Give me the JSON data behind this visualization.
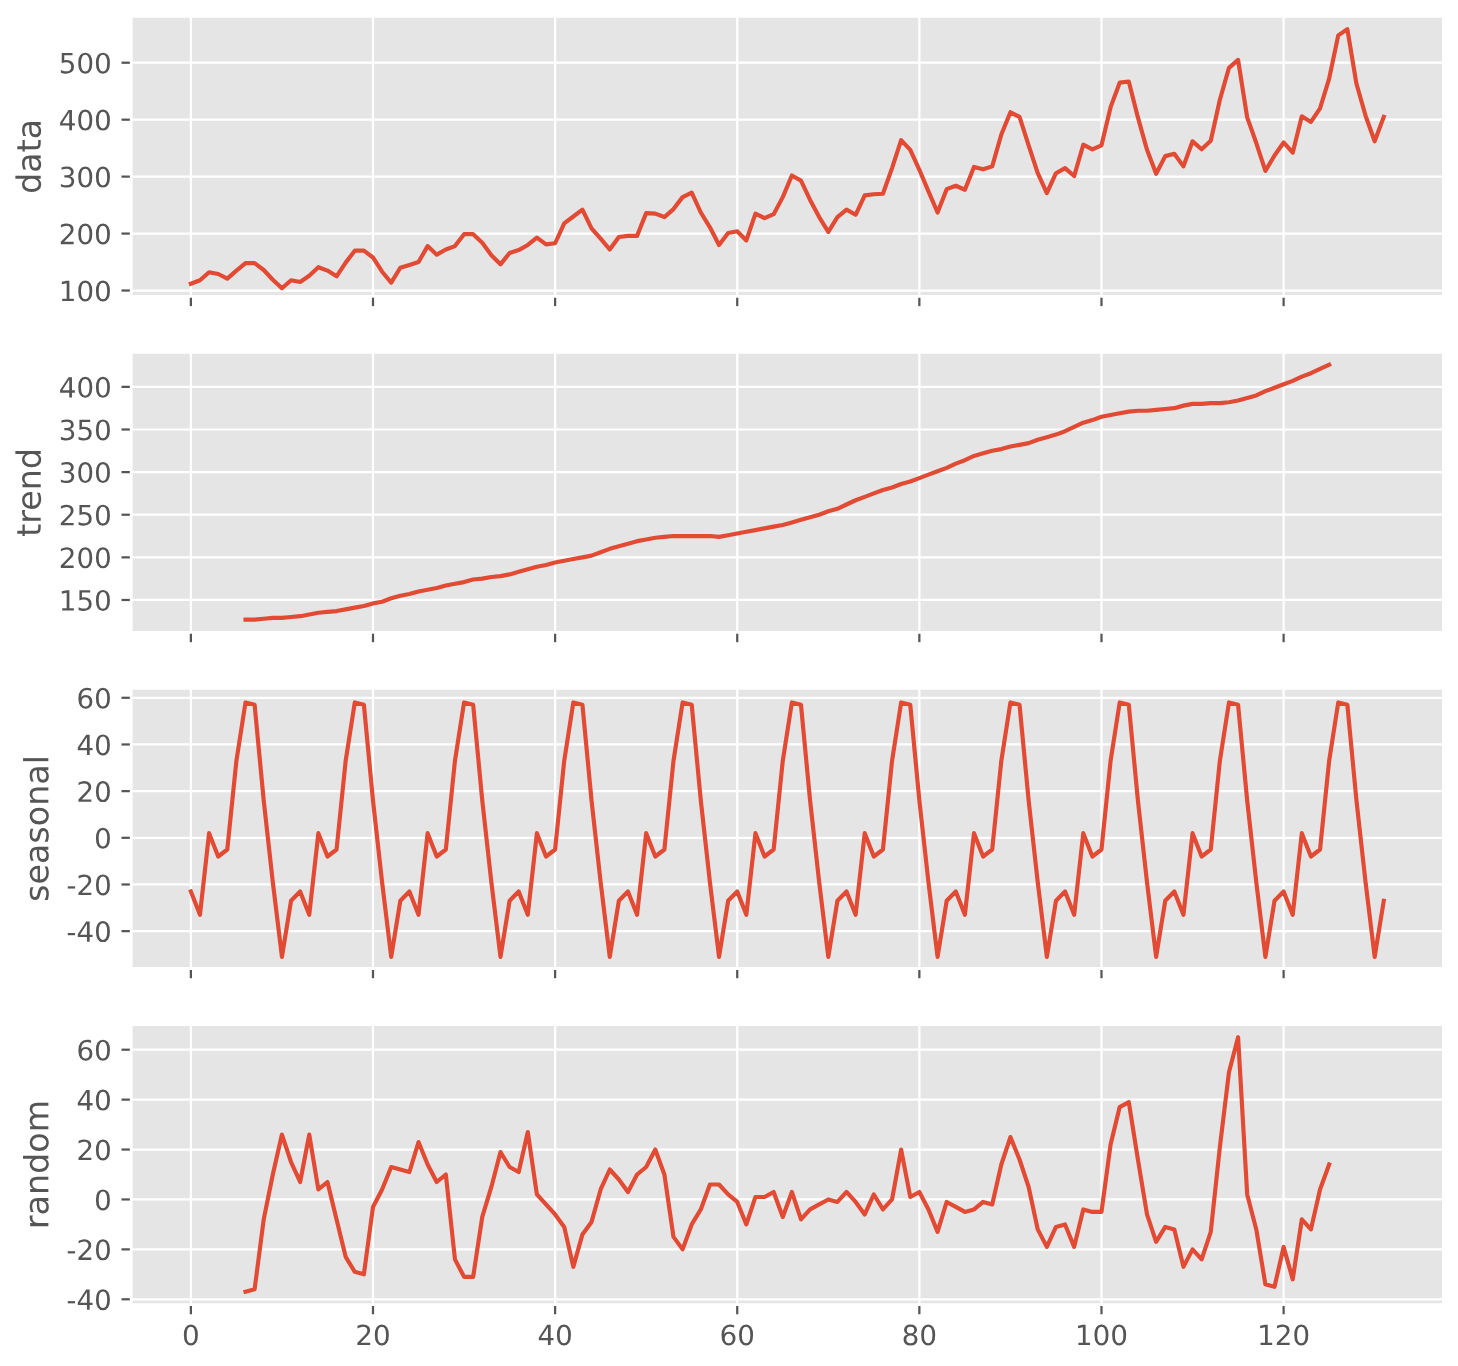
{
  "chart_data": [
    {
      "type": "line",
      "ylabel": "data",
      "color": "#e24a33",
      "grid": true,
      "tick_labels": "y",
      "xlim": [
        -6.55,
        137.55
      ],
      "ylim": [
        89.65,
        581.35
      ],
      "xticks": [
        0,
        20,
        40,
        60,
        80,
        100,
        120
      ],
      "yticks": [
        100,
        200,
        300,
        400,
        500
      ],
      "x": [
        0,
        1,
        2,
        3,
        4,
        5,
        6,
        7,
        8,
        9,
        10,
        11,
        12,
        13,
        14,
        15,
        16,
        17,
        18,
        19,
        20,
        21,
        22,
        23,
        24,
        25,
        26,
        27,
        28,
        29,
        30,
        31,
        32,
        33,
        34,
        35,
        36,
        37,
        38,
        39,
        40,
        41,
        42,
        43,
        44,
        45,
        46,
        47,
        48,
        49,
        50,
        51,
        52,
        53,
        54,
        55,
        56,
        57,
        58,
        59,
        60,
        61,
        62,
        63,
        64,
        65,
        66,
        67,
        68,
        69,
        70,
        71,
        72,
        73,
        74,
        75,
        76,
        77,
        78,
        79,
        80,
        81,
        82,
        83,
        84,
        85,
        86,
        87,
        88,
        89,
        90,
        91,
        92,
        93,
        94,
        95,
        96,
        97,
        98,
        99,
        100,
        101,
        102,
        103,
        104,
        105,
        106,
        107,
        108,
        109,
        110,
        111,
        112,
        113,
        114,
        115,
        116,
        117,
        118,
        119,
        120,
        121,
        122,
        123,
        124,
        125,
        126,
        127,
        128,
        129,
        130,
        131
      ],
      "values": [
        112,
        118,
        132,
        129,
        121,
        135,
        148,
        148,
        136,
        119,
        104,
        118,
        115,
        126,
        141,
        135,
        125,
        149,
        170,
        170,
        158,
        133,
        114,
        140,
        145,
        150,
        178,
        163,
        172,
        178,
        199,
        199,
        184,
        162,
        146,
        166,
        171,
        180,
        193,
        181,
        183,
        218,
        230,
        242,
        209,
        191,
        172,
        194,
        196,
        196,
        236,
        235,
        229,
        243,
        264,
        272,
        237,
        211,
        180,
        201,
        204,
        188,
        235,
        227,
        234,
        264,
        302,
        293,
        259,
        229,
        203,
        229,
        242,
        233,
        267,
        269,
        270,
        315,
        364,
        347,
        312,
        274,
        237,
        278,
        284,
        277,
        317,
        313,
        318,
        374,
        413,
        405,
        355,
        306,
        271,
        306,
        315,
        301,
        356,
        348,
        355,
        422,
        465,
        467,
        404,
        347,
        305,
        336,
        340,
        318,
        362,
        348,
        363,
        435,
        491,
        505,
        404,
        359,
        310,
        337,
        360,
        342,
        406,
        396,
        420,
        472,
        548,
        559,
        463,
        407,
        362,
        405
      ]
    },
    {
      "type": "line",
      "ylabel": "trend",
      "color": "#e24a33",
      "grid": true,
      "tick_labels": "y",
      "xlim": [
        -6.55,
        137.55
      ],
      "ylim": [
        111.9,
        440.4
      ],
      "xticks": [
        0,
        20,
        40,
        60,
        80,
        100,
        120
      ],
      "yticks": [
        150,
        200,
        250,
        300,
        350,
        400
      ],
      "x": [
        6,
        7,
        8,
        9,
        10,
        11,
        12,
        13,
        14,
        15,
        16,
        17,
        18,
        19,
        20,
        21,
        22,
        23,
        24,
        25,
        26,
        27,
        28,
        29,
        30,
        31,
        32,
        33,
        34,
        35,
        36,
        37,
        38,
        39,
        40,
        41,
        42,
        43,
        44,
        45,
        46,
        47,
        48,
        49,
        50,
        51,
        52,
        53,
        54,
        55,
        56,
        57,
        58,
        59,
        60,
        61,
        62,
        63,
        64,
        65,
        66,
        67,
        68,
        69,
        70,
        71,
        72,
        73,
        74,
        75,
        76,
        77,
        78,
        79,
        80,
        81,
        82,
        83,
        84,
        85,
        86,
        87,
        88,
        89,
        90,
        91,
        92,
        93,
        94,
        95,
        96,
        97,
        98,
        99,
        100,
        101,
        102,
        103,
        104,
        105,
        106,
        107,
        108,
        109,
        110,
        111,
        112,
        113,
        114,
        115,
        116,
        117,
        118,
        119,
        120,
        121,
        122,
        123,
        124,
        125
      ],
      "values": [
        127,
        127,
        128,
        129,
        129,
        130,
        131,
        133,
        135,
        136,
        137,
        139,
        141,
        143,
        146,
        148,
        152,
        155,
        157,
        160,
        162,
        164,
        167,
        169,
        171,
        174,
        175,
        177,
        178,
        180,
        183,
        186,
        189,
        191,
        194,
        196,
        198,
        200,
        202,
        206,
        210,
        213,
        216,
        219,
        221,
        223,
        224,
        225,
        225,
        225,
        225,
        225,
        224,
        226,
        228,
        230,
        232,
        234,
        236,
        238,
        241,
        244,
        247,
        250,
        254,
        257,
        262,
        267,
        271,
        275,
        279,
        282,
        286,
        289,
        293,
        297,
        301,
        305,
        310,
        314,
        319,
        322,
        325,
        327,
        330,
        332,
        334,
        338,
        341,
        344,
        348,
        353,
        358,
        361,
        365,
        367,
        369,
        371,
        372,
        372,
        373,
        374,
        375,
        378,
        380,
        380,
        381,
        381,
        382,
        384,
        387,
        390,
        395,
        399,
        403,
        407,
        412,
        416,
        421,
        426
      ]
    },
    {
      "type": "line",
      "ylabel": "seasonal",
      "color": "#e24a33",
      "grid": true,
      "tick_labels": "y",
      "xlim": [
        -6.55,
        137.55
      ],
      "ylim": [
        -56.0,
        64.0
      ],
      "xticks": [
        0,
        20,
        40,
        60,
        80,
        100,
        120
      ],
      "yticks": [
        -40,
        -20,
        0,
        20,
        40,
        60
      ],
      "x": [
        0,
        1,
        2,
        3,
        4,
        5,
        6,
        7,
        8,
        9,
        10,
        11,
        12,
        13,
        14,
        15,
        16,
        17,
        18,
        19,
        20,
        21,
        22,
        23,
        24,
        25,
        26,
        27,
        28,
        29,
        30,
        31,
        32,
        33,
        34,
        35,
        36,
        37,
        38,
        39,
        40,
        41,
        42,
        43,
        44,
        45,
        46,
        47,
        48,
        49,
        50,
        51,
        52,
        53,
        54,
        55,
        56,
        57,
        58,
        59,
        60,
        61,
        62,
        63,
        64,
        65,
        66,
        67,
        68,
        69,
        70,
        71,
        72,
        73,
        74,
        75,
        76,
        77,
        78,
        79,
        80,
        81,
        82,
        83,
        84,
        85,
        86,
        87,
        88,
        89,
        90,
        91,
        92,
        93,
        94,
        95,
        96,
        97,
        98,
        99,
        100,
        101,
        102,
        103,
        104,
        105,
        106,
        107,
        108,
        109,
        110,
        111,
        112,
        113,
        114,
        115,
        116,
        117,
        118,
        119,
        120,
        121,
        122,
        123,
        124,
        125,
        126,
        127,
        128,
        129,
        130,
        131
      ],
      "values": [
        -23,
        -33,
        2,
        -8,
        -5,
        33,
        58,
        57,
        16,
        -19,
        -51,
        -27,
        -23,
        -33,
        2,
        -8,
        -5,
        33,
        58,
        57,
        16,
        -19,
        -51,
        -27,
        -23,
        -33,
        2,
        -8,
        -5,
        33,
        58,
        57,
        16,
        -19,
        -51,
        -27,
        -23,
        -33,
        2,
        -8,
        -5,
        33,
        58,
        57,
        16,
        -19,
        -51,
        -27,
        -23,
        -33,
        2,
        -8,
        -5,
        33,
        58,
        57,
        16,
        -19,
        -51,
        -27,
        -23,
        -33,
        2,
        -8,
        -5,
        33,
        58,
        57,
        16,
        -19,
        -51,
        -27,
        -23,
        -33,
        2,
        -8,
        -5,
        33,
        58,
        57,
        16,
        -19,
        -51,
        -27,
        -23,
        -33,
        2,
        -8,
        -5,
        33,
        58,
        57,
        16,
        -19,
        -51,
        -27,
        -23,
        -33,
        2,
        -8,
        -5,
        33,
        58,
        57,
        16,
        -19,
        -51,
        -27,
        -23,
        -33,
        2,
        -8,
        -5,
        33,
        58,
        57,
        16,
        -19,
        -51,
        -27,
        -23,
        -33,
        2,
        -8,
        -5,
        33,
        58,
        57,
        16,
        -19,
        -51,
        -27
      ]
    },
    {
      "type": "line",
      "ylabel": "random",
      "color": "#e24a33",
      "grid": true,
      "xlim": [
        -6.55,
        137.55
      ],
      "ylim": [
        -42.1,
        70.1
      ],
      "xticks": [
        0,
        20,
        40,
        60,
        80,
        100,
        120
      ],
      "yticks": [
        -40,
        -20,
        0,
        20,
        40,
        60
      ],
      "x": [
        6,
        7,
        8,
        9,
        10,
        11,
        12,
        13,
        14,
        15,
        16,
        17,
        18,
        19,
        20,
        21,
        22,
        23,
        24,
        25,
        26,
        27,
        28,
        29,
        30,
        31,
        32,
        33,
        34,
        35,
        36,
        37,
        38,
        39,
        40,
        41,
        42,
        43,
        44,
        45,
        46,
        47,
        48,
        49,
        50,
        51,
        52,
        53,
        54,
        55,
        56,
        57,
        58,
        59,
        60,
        61,
        62,
        63,
        64,
        65,
        66,
        67,
        68,
        69,
        70,
        71,
        72,
        73,
        74,
        75,
        76,
        77,
        78,
        79,
        80,
        81,
        82,
        83,
        84,
        85,
        86,
        87,
        88,
        89,
        90,
        91,
        92,
        93,
        94,
        95,
        96,
        97,
        98,
        99,
        100,
        101,
        102,
        103,
        104,
        105,
        106,
        107,
        108,
        109,
        110,
        111,
        112,
        113,
        114,
        115,
        116,
        117,
        118,
        119,
        120,
        121,
        122,
        123,
        124,
        125
      ],
      "values": [
        -37,
        -36,
        -8,
        10,
        26,
        15,
        7,
        26,
        4,
        7,
        -8,
        -23,
        -29,
        -30,
        -3,
        4,
        13,
        12,
        11,
        23,
        14,
        7,
        10,
        -24,
        -31,
        -31,
        -7,
        5,
        19,
        13,
        11,
        27,
        2,
        -2,
        -6,
        -11,
        -27,
        -14,
        -9,
        4,
        12,
        8,
        3,
        10,
        13,
        20,
        10,
        -15,
        -20,
        -10,
        -4,
        6,
        6,
        2,
        -1,
        -10,
        1,
        1,
        3,
        -7,
        3,
        -8,
        -4,
        -2,
        0,
        -1,
        3,
        -1,
        -6,
        2,
        -4,
        0,
        20,
        1,
        3,
        -4,
        -13,
        -1,
        -3,
        -5,
        -4,
        -1,
        -2,
        14,
        25,
        16,
        5,
        -12,
        -19,
        -11,
        -10,
        -19,
        -4,
        -5,
        -5,
        22,
        37,
        39,
        16,
        -6,
        -17,
        -11,
        -12,
        -27,
        -20,
        -24,
        -13,
        21,
        51,
        65,
        2,
        -12,
        -34,
        -35,
        -19,
        -32,
        -8,
        -12,
        4,
        14
      ]
    }
  ]
}
